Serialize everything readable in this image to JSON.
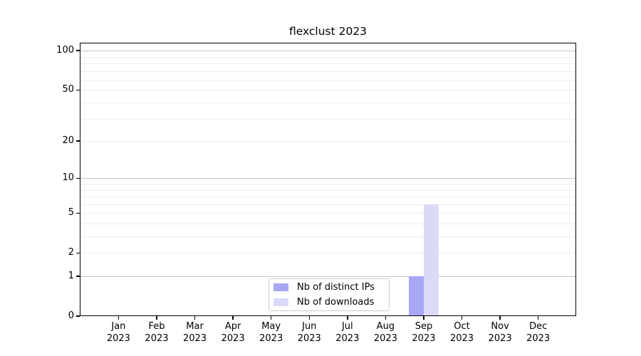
{
  "title": "flexclust 2023",
  "colors": {
    "background": "#ffffff",
    "axis": "#000000",
    "grid_major": "#c6c6c6",
    "grid_minor": "#ededed",
    "legend_border": "#cccccc",
    "ips_bar": "#a7a7f5",
    "downloads_bar": "#dadaf8"
  },
  "legend": {
    "position": "lower center",
    "items": [
      {
        "label": "Nb of distinct IPs",
        "color": "#a7a7f5"
      },
      {
        "label": "Nb of downloads",
        "color": "#dadaf8"
      }
    ]
  },
  "chart_data": {
    "type": "bar",
    "title": "flexclust 2023",
    "categories": [
      "Jan 2023",
      "Feb 2023",
      "Mar 2023",
      "Apr 2023",
      "May 2023",
      "Jun 2023",
      "Jul 2023",
      "Aug 2023",
      "Sep 2023",
      "Oct 2023",
      "Nov 2023",
      "Dec 2023"
    ],
    "series": [
      {
        "name": "Nb of distinct IPs",
        "color": "#a7a7f5",
        "values": [
          0,
          0,
          0,
          0,
          0,
          0,
          0,
          0,
          1,
          0,
          0,
          0
        ]
      },
      {
        "name": "Nb of downloads",
        "color": "#dadaf8",
        "values": [
          0,
          0,
          0,
          0,
          0,
          0,
          0,
          0,
          6,
          0,
          0,
          0
        ]
      }
    ],
    "xlabel": "",
    "ylabel": "",
    "yscale": "log10(1+x)",
    "ylim": [
      0,
      115
    ],
    "yticks": [
      0,
      1,
      2,
      5,
      10,
      20,
      50,
      100
    ],
    "grid": {
      "on": true,
      "major": [
        1,
        10,
        100
      ],
      "minor": [
        2,
        3,
        4,
        5,
        6,
        7,
        8,
        9,
        20,
        30,
        40,
        50,
        60,
        70,
        80,
        90
      ]
    },
    "legend_position": "lower center"
  }
}
